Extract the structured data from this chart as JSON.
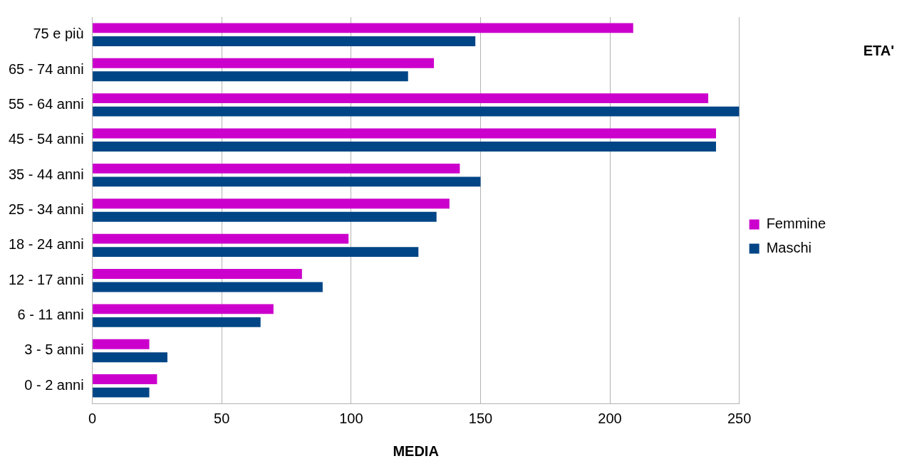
{
  "chart_data": {
    "type": "bar",
    "orientation": "horizontal",
    "xlabel": "MEDIA",
    "annotations": [
      "ETA'"
    ],
    "categories": [
      "75 e più",
      "65 - 74 anni",
      "55 - 64 anni",
      "45 - 54 anni",
      "35 - 44 anni",
      "25 - 34 anni",
      "18 - 24 anni",
      "12 - 17 anni",
      "6 - 11 anni",
      "3 - 5 anni",
      "0 - 2 anni"
    ],
    "series": [
      {
        "name": "Femmine",
        "color": "#cc00cc",
        "values": [
          209,
          132,
          238,
          241,
          142,
          138,
          99,
          81,
          70,
          22,
          25
        ]
      },
      {
        "name": "Maschi",
        "color": "#004586",
        "values": [
          148,
          122,
          250,
          241,
          150,
          133,
          126,
          89,
          65,
          29,
          22
        ]
      }
    ],
    "xlim": [
      0,
      250
    ],
    "xticks": [
      0,
      50,
      100,
      150,
      200,
      250
    ],
    "grid": "x",
    "legend": "right"
  }
}
